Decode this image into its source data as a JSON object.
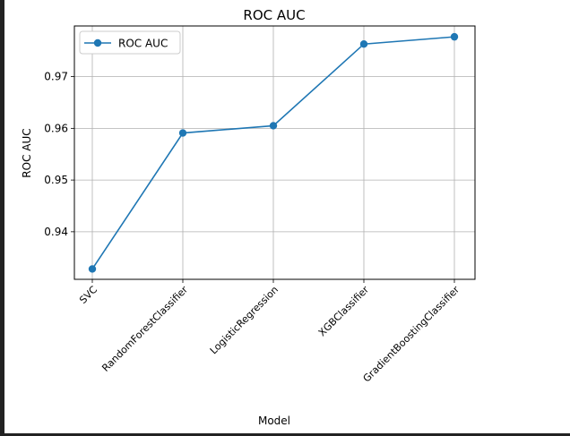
{
  "chart_data": {
    "type": "line",
    "title": "ROC AUC",
    "xlabel": "Model",
    "ylabel": "ROC AUC",
    "categories": [
      "SVC",
      "RandomForestClassifier",
      "LogisticRegression",
      "XGBClassifier",
      "GradientBoostingClassifier"
    ],
    "series": [
      {
        "name": "ROC AUC",
        "values": [
          0.9328,
          0.9591,
          0.9605,
          0.9763,
          0.9777
        ],
        "color": "#1f77b4",
        "marker": "circle"
      }
    ],
    "yticks": [
      "0.94",
      "0.95",
      "0.96",
      "0.97"
    ],
    "ylim": [
      0.9308,
      0.9798
    ],
    "grid": true,
    "legend": "top-left"
  }
}
